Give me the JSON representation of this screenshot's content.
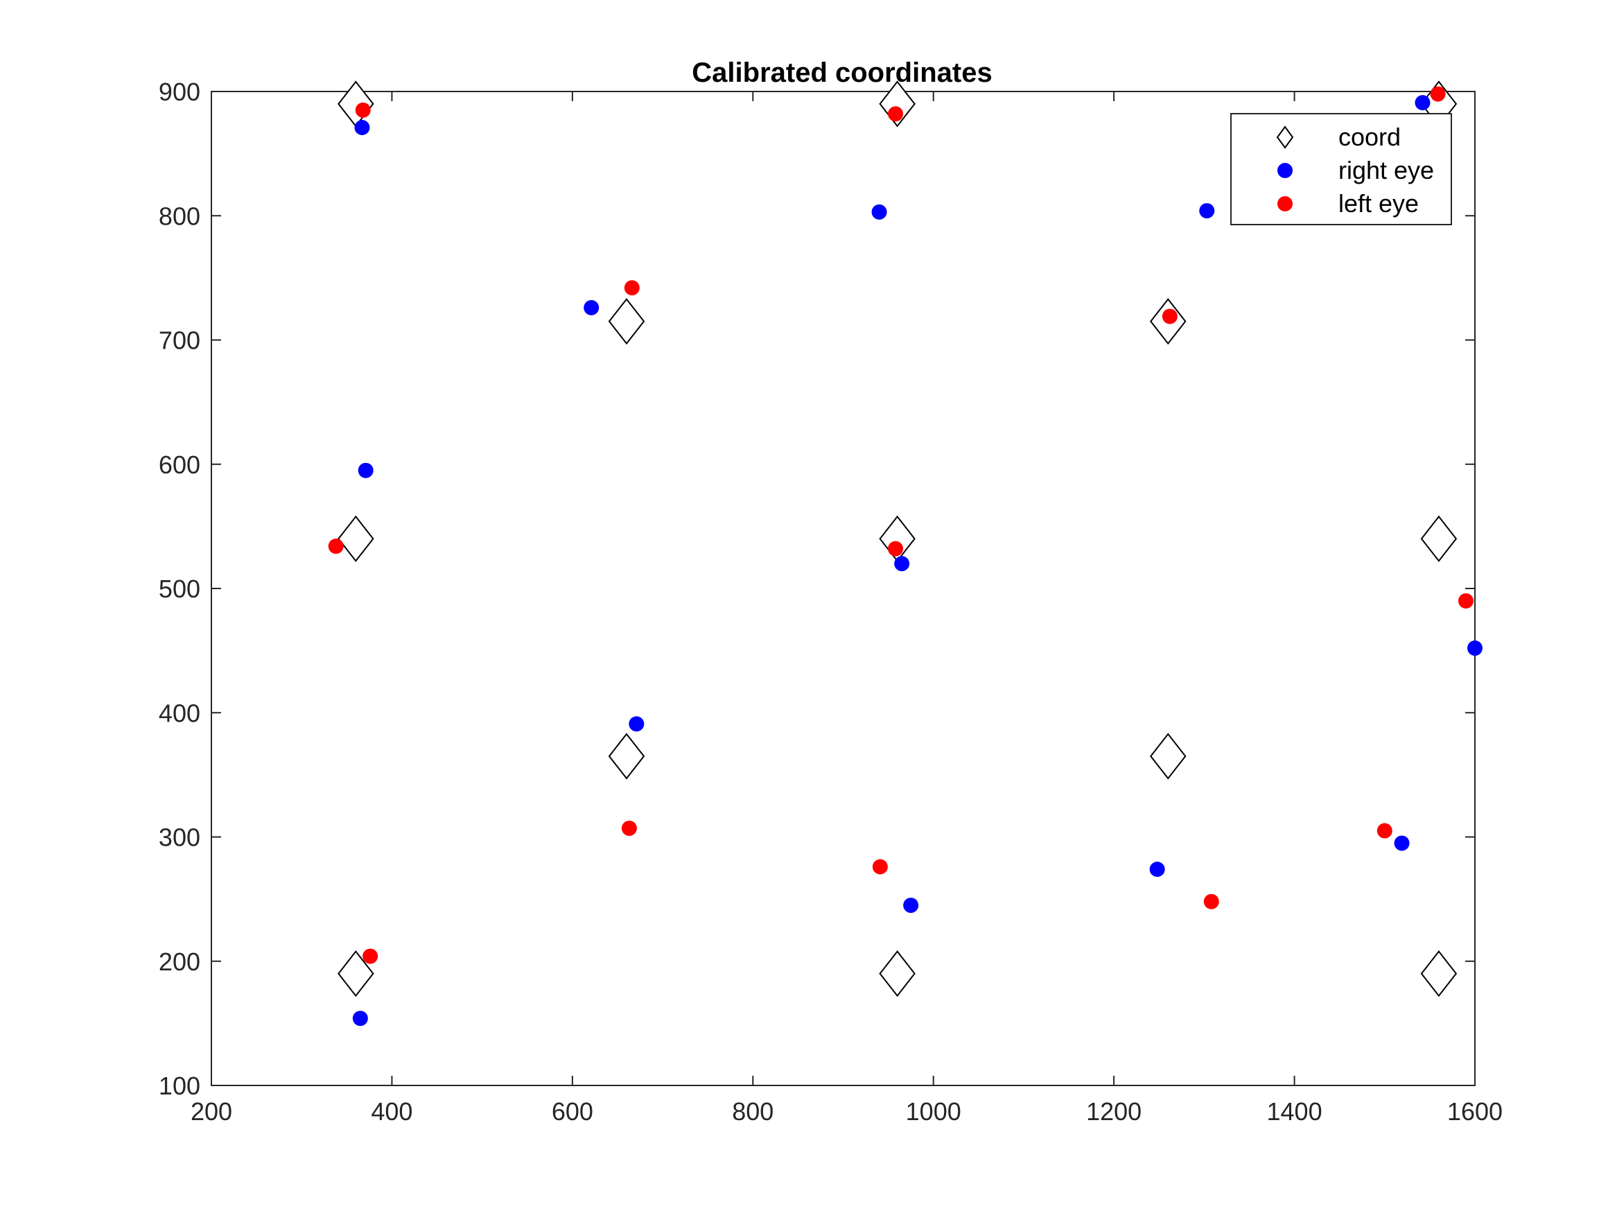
{
  "chart_data": {
    "type": "scatter",
    "title": "Calibrated coordinates",
    "xlabel": "",
    "ylabel": "",
    "xlim": [
      200,
      1600
    ],
    "ylim": [
      100,
      900
    ],
    "xticks": [
      "200",
      "400",
      "600",
      "800",
      "1000",
      "1200",
      "1400",
      "1600"
    ],
    "yticks": [
      "100",
      "200",
      "300",
      "400",
      "500",
      "600",
      "700",
      "800",
      "900"
    ],
    "legend_position": "top-right",
    "grid": false,
    "series": [
      {
        "name": "coord",
        "marker": "diamond",
        "color": "#000000",
        "points": [
          [
            360,
            890
          ],
          [
            960,
            890
          ],
          [
            1560,
            890
          ],
          [
            660,
            715
          ],
          [
            1260,
            715
          ],
          [
            360,
            540
          ],
          [
            960,
            540
          ],
          [
            1560,
            540
          ],
          [
            660,
            365
          ],
          [
            1260,
            365
          ],
          [
            360,
            190
          ],
          [
            960,
            190
          ],
          [
            1560,
            190
          ]
        ]
      },
      {
        "name": "right eye",
        "marker": "circle",
        "color": "#0000ff",
        "points": [
          [
            367,
            871
          ],
          [
            940,
            803
          ],
          [
            1303,
            804
          ],
          [
            1542,
            891
          ],
          [
            621,
            726
          ],
          [
            371,
            595
          ],
          [
            965,
            520
          ],
          [
            1600,
            452
          ],
          [
            671,
            391
          ],
          [
            975,
            245
          ],
          [
            1248,
            274
          ],
          [
            1519,
            295
          ],
          [
            365,
            154
          ]
        ]
      },
      {
        "name": "left eye",
        "marker": "circle",
        "color": "#ff0000",
        "points": [
          [
            368,
            885
          ],
          [
            958,
            882
          ],
          [
            1559,
            898
          ],
          [
            666,
            742
          ],
          [
            1262,
            719
          ],
          [
            338,
            534
          ],
          [
            958,
            532
          ],
          [
            1590,
            490
          ],
          [
            663,
            307
          ],
          [
            941,
            276
          ],
          [
            1308,
            248
          ],
          [
            1500,
            305
          ],
          [
            376,
            204
          ]
        ]
      }
    ]
  }
}
